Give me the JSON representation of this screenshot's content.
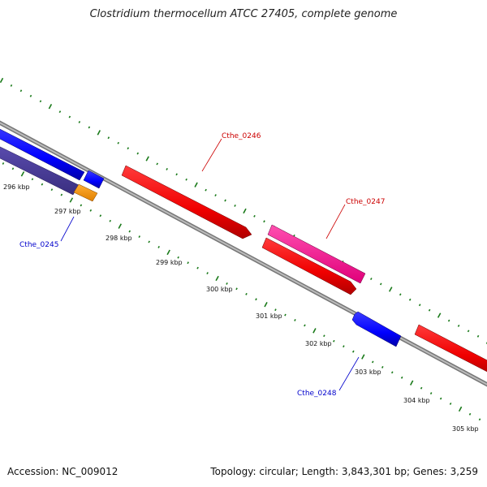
{
  "title": "Clostridium thermocellum ATCC 27405, complete genome",
  "footer": {
    "accession": "Accession: NC_009012",
    "summary": "Topology: circular; Length: 3,843,301 bp; Genes: 3,259"
  },
  "colors": {
    "forward_strand": "#ff0000",
    "reverse_strand": "#0000ff",
    "highlight": "#ff1493",
    "dark_feature": "#4b3d99",
    "orange_feature": "#ff9900",
    "backbone": "#888888",
    "ticks": "#1a7a1a",
    "forward_label": "#cc0000",
    "reverse_label": "#0000cc"
  },
  "ticks": [
    {
      "label": "296 kbp"
    },
    {
      "label": "297 kbp"
    },
    {
      "label": "298 kbp"
    },
    {
      "label": "299 kbp"
    },
    {
      "label": "300 kbp"
    },
    {
      "label": "301 kbp"
    },
    {
      "label": "302 kbp"
    },
    {
      "label": "303 kbp"
    },
    {
      "label": "304 kbp"
    },
    {
      "label": "305 kbp"
    }
  ],
  "gene_labels": {
    "cthe_0245": "Cthe_0245",
    "cthe_0246": "Cthe_0246",
    "cthe_0247": "Cthe_0247",
    "cthe_0248": "Cthe_0248"
  }
}
